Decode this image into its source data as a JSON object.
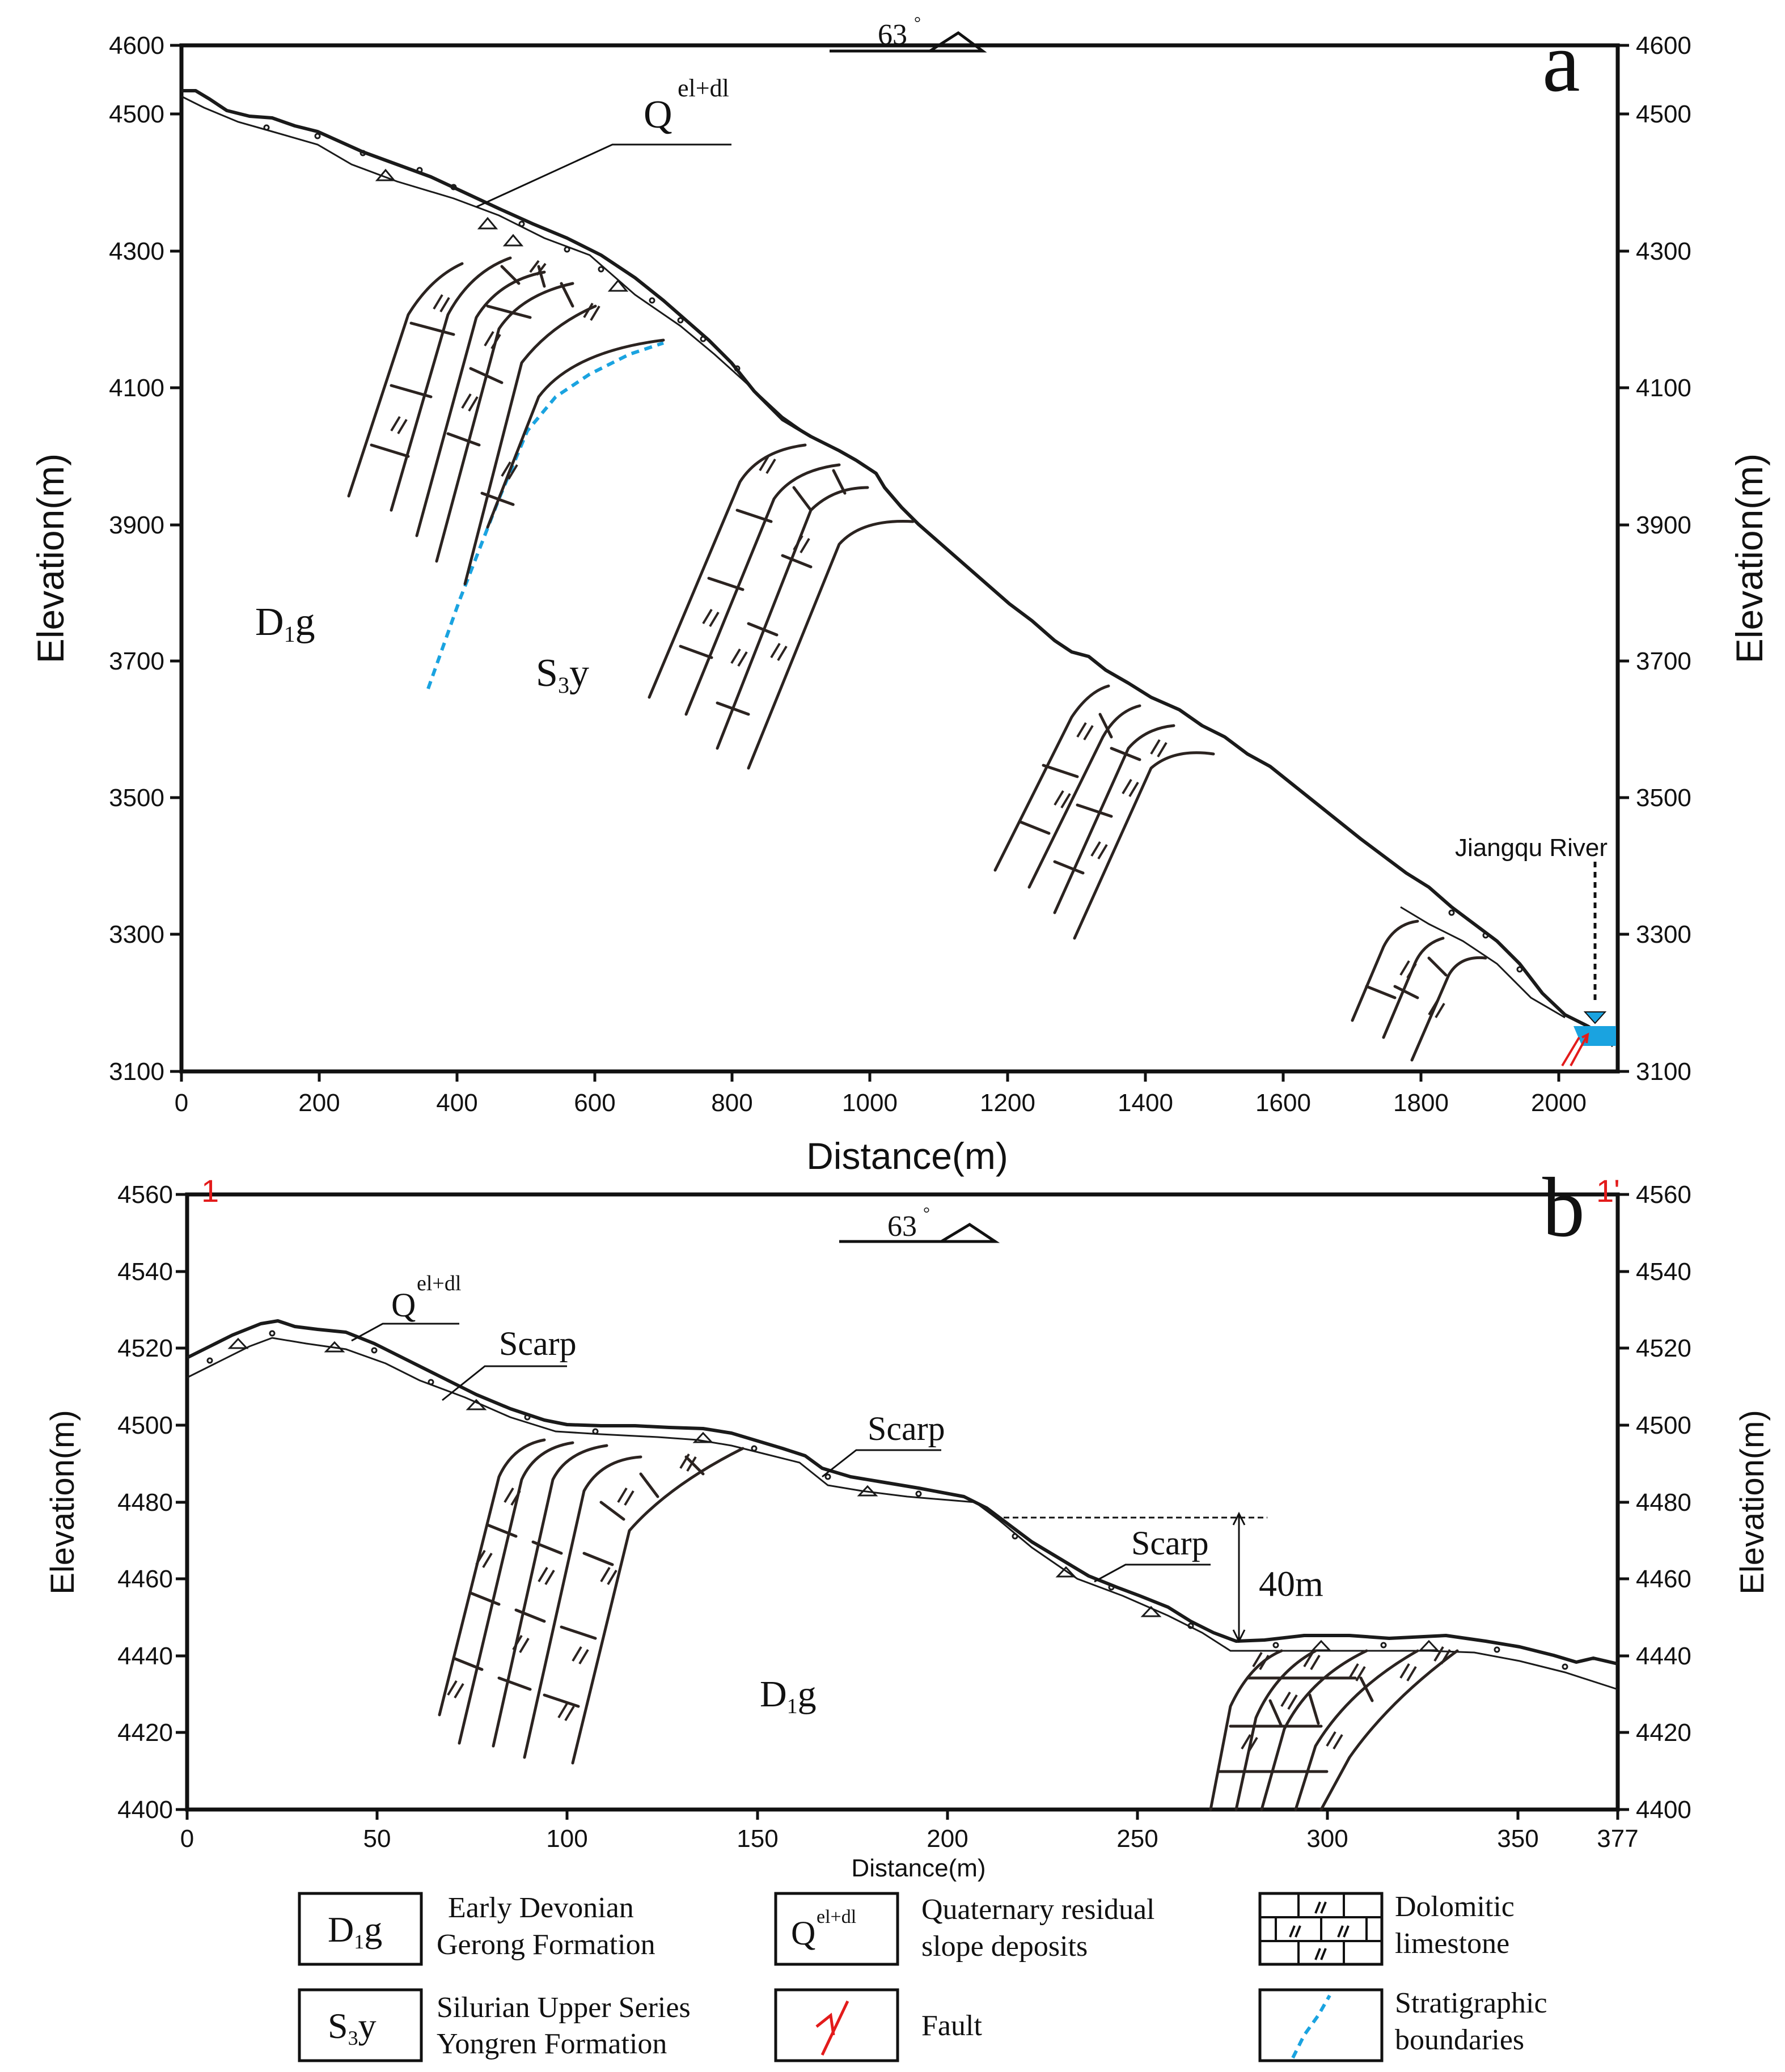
{
  "panel_a": {
    "letter": "a",
    "dip_label": "63",
    "dip_unit": "°",
    "y_axis_label": "Elevation(m)",
    "x_axis_label": "Distance(m)",
    "y_ticks": [
      "4600",
      "4500",
      "4300",
      "4100",
      "3900",
      "3700",
      "3500",
      "3300",
      "3100"
    ],
    "x_ticks": [
      "0",
      "200",
      "400",
      "600",
      "800",
      "1000",
      "1200",
      "1400",
      "1600",
      "1800",
      "2000"
    ],
    "labels": {
      "quaternary": "Q",
      "quaternary_sup": "el+dl",
      "d1g_main": "D",
      "d1g_sub": "1",
      "d1g_tail": "g",
      "s3y_main": "S",
      "s3y_sub": "3",
      "s3y_tail": "y",
      "river": "Jiangqu  River"
    },
    "colors": {
      "boundary": "#1aa3e0",
      "fault": "#e31b1b",
      "water": "#1aa3e0"
    }
  },
  "panel_b": {
    "letter": "b",
    "section_start": "1",
    "section_end": "1'",
    "dip_label": "63",
    "dip_unit": "°",
    "y_axis_label": "Elevation(m)",
    "x_axis_label": "Distance(m)",
    "y_ticks": [
      "4560",
      "4540",
      "4520",
      "4500",
      "4480",
      "4460",
      "4440",
      "4420",
      "4400"
    ],
    "x_ticks": [
      "0",
      "50",
      "100",
      "150",
      "200",
      "250",
      "300",
      "350",
      "377"
    ],
    "labels": {
      "quaternary": "Q",
      "quaternary_sup": "el+dl",
      "scarp1": "Scarp",
      "scarp2": "Scarp",
      "scarp3": "Scarp",
      "height": "40m",
      "d1g_main": "D",
      "d1g_sub": "1",
      "d1g_tail": "g"
    },
    "colors": {
      "section_marker": "#e31b1b"
    }
  },
  "legend": {
    "items": [
      {
        "symbol_main": "D",
        "symbol_sub": "1",
        "symbol_tail": "g",
        "line1": "Early Devonian",
        "line2": "Gerong Formation"
      },
      {
        "symbol_main": "Q",
        "symbol_sup": "el+dl",
        "line1": "Quaternary residual",
        "line2": "slope deposits"
      },
      {
        "line1": "Dolomitic",
        "line2": "limestone"
      },
      {
        "symbol_main": "S",
        "symbol_sub": "3",
        "symbol_tail": "y",
        "line1": "Silurian Upper Series",
        "line2": "Yongren Formation"
      },
      {
        "line1": "Fault"
      },
      {
        "line1": "Stratigraphic",
        "line2": "boundaries"
      }
    ]
  }
}
